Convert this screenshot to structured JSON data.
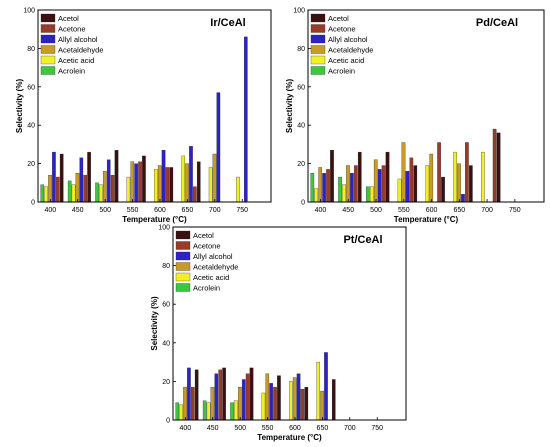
{
  "colors": {
    "Acetol": "#3a1010",
    "Acetone": "#9a3b2a",
    "Allyl alcohol": "#2c22c8",
    "Acetaldehyde": "#c89a2a",
    "Acetic acid": "#f0f028",
    "Acrolein": "#3cc83c",
    "series_order": [
      "Acrolein",
      "Acetic acid",
      "Acetaldehyde",
      "Allyl alcohol",
      "Acetone",
      "Acetol"
    ]
  },
  "chart_data": [
    {
      "type": "bar",
      "title": "Ir/CeAl",
      "xlabel": "Temperature (°C)",
      "ylabel": "Selectivity (%)",
      "ylim": [
        0,
        100
      ],
      "yticks": [
        "0",
        "20",
        "40",
        "60",
        "80",
        "100"
      ],
      "categories": [
        "400",
        "450",
        "500",
        "550",
        "600",
        "650",
        "700",
        "750"
      ],
      "legend": [
        "Acetol",
        "Acetone",
        "Allyl alcohol",
        "Acetaldehyde",
        "Acetic acid",
        "Acrolein"
      ],
      "series": [
        {
          "name": "Acrolein",
          "values": [
            9,
            11,
            10,
            0,
            0,
            0,
            0,
            0
          ]
        },
        {
          "name": "Acetic acid",
          "values": [
            8,
            9,
            9,
            13,
            17,
            24,
            18,
            13
          ]
        },
        {
          "name": "Acetaldehyde",
          "values": [
            14,
            15,
            16,
            21,
            19,
            20,
            25,
            0
          ]
        },
        {
          "name": "Allyl alcohol",
          "values": [
            26,
            23,
            22,
            20,
            27,
            29,
            57,
            86
          ]
        },
        {
          "name": "Acetone",
          "values": [
            13,
            14,
            14,
            21,
            18,
            8,
            0,
            0
          ]
        },
        {
          "name": "Acetol",
          "values": [
            25,
            26,
            27,
            24,
            18,
            21,
            0,
            0
          ]
        }
      ]
    },
    {
      "type": "bar",
      "title": "Pd/CeAl",
      "xlabel": "Temperature (°C)",
      "ylabel": "Selectivity (%)",
      "ylim": [
        0,
        100
      ],
      "yticks": [
        "0",
        "20",
        "40",
        "60",
        "80",
        "100"
      ],
      "categories": [
        "400",
        "450",
        "500",
        "550",
        "600",
        "650",
        "700",
        "750"
      ],
      "legend": [
        "Acetol",
        "Acetone",
        "Allyl alcohol",
        "Acetaldehyde",
        "Acetic acid",
        "Acrolein"
      ],
      "series": [
        {
          "name": "Acrolein",
          "values": [
            15,
            13,
            8,
            0,
            0,
            0,
            0,
            0
          ]
        },
        {
          "name": "Acetic acid",
          "values": [
            7,
            9,
            8,
            12,
            19,
            26,
            26,
            0
          ]
        },
        {
          "name": "Acetaldehyde",
          "values": [
            18,
            19,
            22,
            31,
            25,
            20,
            0,
            0
          ]
        },
        {
          "name": "Allyl alcohol",
          "values": [
            15,
            15,
            17,
            16,
            0,
            4,
            0,
            0
          ]
        },
        {
          "name": "Acetone",
          "values": [
            17,
            19,
            19,
            23,
            31,
            31,
            38,
            0
          ]
        },
        {
          "name": "Acetol",
          "values": [
            27,
            26,
            26,
            19,
            13,
            19,
            36,
            0
          ]
        }
      ]
    },
    {
      "type": "bar",
      "title": "Pt/CeAl",
      "xlabel": "Temperature (°C)",
      "ylabel": "Selectivity (%)",
      "ylim": [
        0,
        100
      ],
      "yticks": [
        "0",
        "20",
        "40",
        "60",
        "80",
        "100"
      ],
      "categories": [
        "400",
        "450",
        "500",
        "550",
        "600",
        "650",
        "700",
        "750"
      ],
      "legend": [
        "Acetol",
        "Acetone",
        "Allyl alcohol",
        "Acetaldehyde",
        "Acetic acid",
        "Acrolein"
      ],
      "series": [
        {
          "name": "Acrolein",
          "values": [
            9,
            10,
            9,
            0,
            0,
            0,
            0,
            0
          ]
        },
        {
          "name": "Acetic acid",
          "values": [
            8,
            9,
            10,
            14,
            20,
            30,
            0,
            0
          ]
        },
        {
          "name": "Acetaldehyde",
          "values": [
            17,
            17,
            17,
            24,
            22,
            15,
            0,
            0
          ]
        },
        {
          "name": "Allyl alcohol",
          "values": [
            27,
            24,
            21,
            19,
            24,
            35,
            0,
            0
          ]
        },
        {
          "name": "Acetone",
          "values": [
            17,
            26,
            24,
            17,
            16,
            0,
            0,
            0
          ]
        },
        {
          "name": "Acetol",
          "values": [
            26,
            27,
            27,
            23,
            17,
            21,
            0,
            0
          ]
        }
      ]
    }
  ]
}
